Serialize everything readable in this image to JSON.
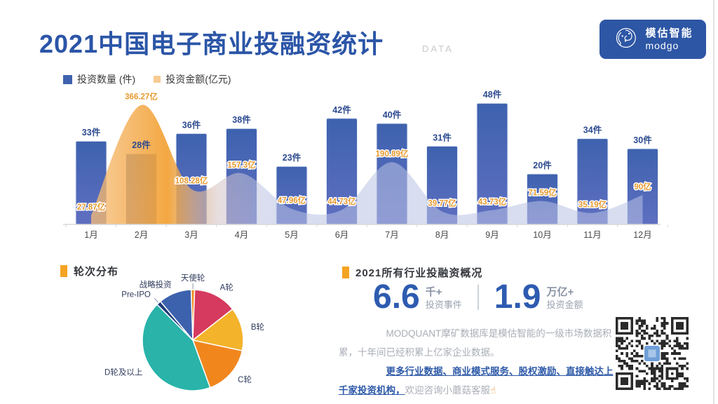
{
  "header": {
    "title": "2021中国电子商业投融资统计",
    "watermark": "DATA",
    "logo": {
      "name_cn": "模估智能",
      "name_en": "modgo",
      "bg_color": "#2d56a5"
    }
  },
  "sections": {
    "rounds": {
      "title": "轮次分布"
    },
    "overview": {
      "title": "2021所有行业投融资概况",
      "stats": [
        {
          "value": "6.6",
          "unit": "千+",
          "label": "投资事件"
        },
        {
          "value": "1.9",
          "unit": "万亿+",
          "label": "投资金额"
        }
      ],
      "desc1": "MODQUANT摩矿数据库是模估智能的一级市场数据积累，十年间已经积累上亿家企业数据。",
      "desc2_em": "更多行业数据、商业模式服务、股权激励、直接触达上千家投资机构，",
      "desc2_tail": "欢迎咨询小蘑菇客服",
      "hand_icon": "☝"
    }
  },
  "chart_data": [
    {
      "id": "monthly_combo",
      "type": "bar",
      "title": "2021中国电子商业投融资统计",
      "categories": [
        "1月",
        "2月",
        "3月",
        "4月",
        "5月",
        "6月",
        "7月",
        "8月",
        "9月",
        "10月",
        "11月",
        "12月"
      ],
      "series": [
        {
          "name": "投资数量 (件)",
          "chart": "bar",
          "unit": "件",
          "values": [
            33,
            28,
            36,
            38,
            23,
            42,
            40,
            31,
            48,
            20,
            34,
            30
          ],
          "labels": [
            "33件",
            "28件",
            "36件",
            "38件",
            "23件",
            "42件",
            "40件",
            "31件",
            "48件",
            "20件",
            "34件",
            "30件"
          ],
          "color": "#3e62ae"
        },
        {
          "name": "投资金额(亿元)",
          "chart": "area",
          "unit": "亿元",
          "values": [
            27.87,
            366.27,
            108.28,
            157.3,
            47.96,
            44.73,
            190.89,
            39.77,
            43.73,
            71.59,
            35.19,
            90
          ],
          "labels": [
            "27.87亿",
            "366.27亿",
            "108.28亿",
            "157.3亿",
            "47.96亿",
            "44.73亿",
            "190.89亿",
            "39.77亿",
            "43.73亿",
            "71.59亿",
            "35.19亿",
            "90亿"
          ],
          "color_peak": "#f2a235",
          "color_rest": "#b9c2e4"
        }
      ],
      "ylim_count": [
        0,
        55
      ],
      "ylim_amount": [
        0,
        420
      ],
      "y_axis_visible": false,
      "grid": false,
      "legend_position": "top-left"
    },
    {
      "id": "round_distribution",
      "type": "pie",
      "title": "轮次分布",
      "start_angle": 320,
      "slices": [
        {
          "label": "战略投资",
          "value": 10.6,
          "color": "#3d62ad"
        },
        {
          "label": "天使轮",
          "value": 1.1,
          "color": "#f08c1e"
        },
        {
          "label": "A轮",
          "value": 13.9,
          "color": "#d63a5e"
        },
        {
          "label": "B轮",
          "value": 13.9,
          "color": "#f3b32a"
        },
        {
          "label": "C轮",
          "value": 16.1,
          "color": "#f1861d"
        },
        {
          "label": "D轮及以上",
          "value": 43.1,
          "color": "#29b3a9"
        },
        {
          "label": "Pre-IPO",
          "value": 1.4,
          "color": "#1e3a7a"
        }
      ],
      "label_color": "#2f3b5c"
    }
  ],
  "style": {
    "count_label_color": "#2c4a8f",
    "amount_label_color": "#e8992e",
    "axis_color": "#d8d8d8",
    "month_label_color": "#4a4a4a"
  }
}
